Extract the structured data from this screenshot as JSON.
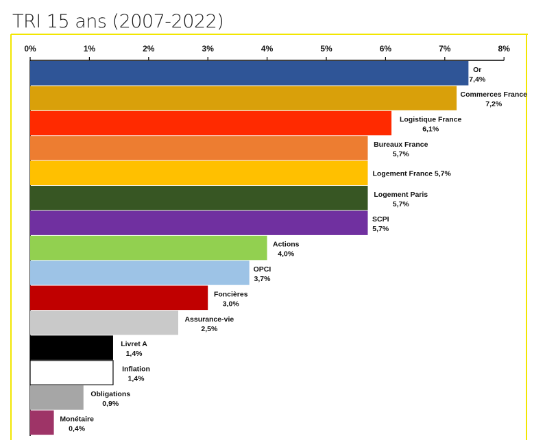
{
  "chart_data": {
    "type": "bar",
    "orientation": "horizontal",
    "title": "TRI 15 ans (2007-2022)",
    "xlim": [
      0,
      8
    ],
    "x_ticks": [
      "0%",
      "1%",
      "2%",
      "3%",
      "4%",
      "5%",
      "6%",
      "7%",
      "8%"
    ],
    "accent_color": "#f2e600",
    "bars": [
      {
        "category": "Or",
        "value": 7.4,
        "value_label": "7,4%",
        "color": "#2f5597",
        "label_layout": "stacked"
      },
      {
        "category": "Commerces France",
        "value": 7.2,
        "value_label": "7,2%",
        "color": "#d9a00a",
        "label_layout": "stacked"
      },
      {
        "category": "Logistique France",
        "value": 6.1,
        "value_label": "6,1%",
        "color": "#ff2a00",
        "label_layout": "stacked"
      },
      {
        "category": "Bureaux France",
        "value": 5.7,
        "value_label": "5,7%",
        "color": "#ed7d31",
        "label_layout": "stacked"
      },
      {
        "category": "Logement France",
        "value": 5.7,
        "value_label": "5,7%",
        "color": "#ffc000",
        "label_layout": "inline"
      },
      {
        "category": "Logement Paris",
        "value": 5.7,
        "value_label": "5,7%",
        "color": "#375623",
        "label_layout": "stacked"
      },
      {
        "category": "SCPI",
        "value": 5.7,
        "value_label": "5,7%",
        "color": "#7030a0",
        "label_layout": "stacked"
      },
      {
        "category": "Actions",
        "value": 4.0,
        "value_label": "4,0%",
        "color": "#92d050",
        "label_layout": "stacked"
      },
      {
        "category": "OPCI",
        "value": 3.7,
        "value_label": "3,7%",
        "color": "#9dc3e6",
        "label_layout": "stacked"
      },
      {
        "category": "Foncières",
        "value": 3.0,
        "value_label": "3,0%",
        "color": "#c00000",
        "label_layout": "stacked"
      },
      {
        "category": "Assurance-vie",
        "value": 2.5,
        "value_label": "2,5%",
        "color": "#c9c9c9",
        "label_layout": "stacked"
      },
      {
        "category": "Livret A",
        "value": 1.4,
        "value_label": "1,4%",
        "color": "#000000",
        "label_layout": "stacked"
      },
      {
        "category": "Inflation",
        "value": 1.4,
        "value_label": "1,4%",
        "color": "#ffffff",
        "label_layout": "stacked"
      },
      {
        "category": "Obligations",
        "value": 0.9,
        "value_label": "0,9%",
        "color": "#a6a6a6",
        "label_layout": "stacked"
      },
      {
        "category": "Monétaire",
        "value": 0.4,
        "value_label": "0,4%",
        "color": "#9e3467",
        "label_layout": "stacked"
      }
    ]
  }
}
